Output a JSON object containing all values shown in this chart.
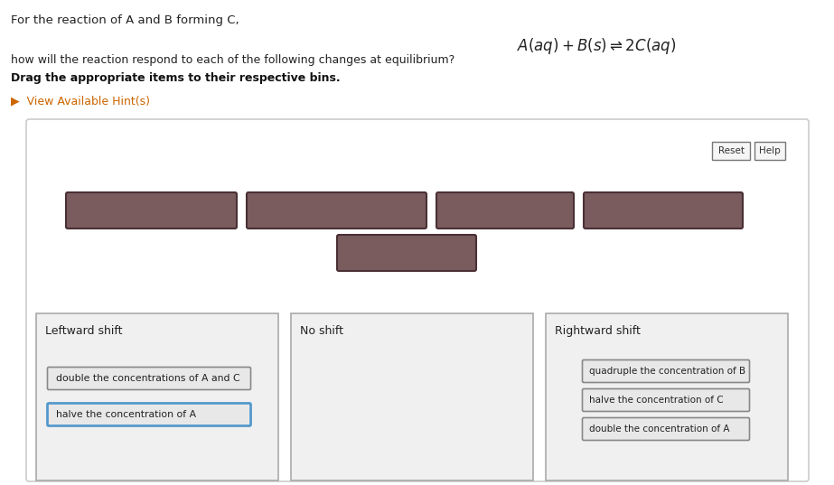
{
  "title_line1": "For the reaction of A and B forming C,",
  "title_line2": "how will the reaction respond to each of the following changes at equilibrium?",
  "title_line3": "Drag the appropriate items to their respective bins.",
  "equation": "$A(aq) + B(s) \\rightleftharpoons 2C(aq)$",
  "hint_text": "▶  View Available Hint(s)",
  "hint_color": "#cc6600",
  "bg_color": "#ffffff",
  "panel_bg": "#ffffff",
  "panel_border": "#cccccc",
  "draggable_color": "#7a5c5e",
  "draggable_border": "#4a3035",
  "bin_labels": [
    "Leftward shift",
    "No shift",
    "Rightward shift"
  ],
  "leftward_items": [
    "double the concentrations of A and C",
    "halve the concentration of A"
  ],
  "rightward_items": [
    "quadruple the concentration of B",
    "halve the concentration of C",
    "double the concentration of A"
  ],
  "button_reset": "Reset",
  "button_help": "Help",
  "item_box_face": "#e8e8e8",
  "item_box_border": "#888888",
  "halve_A_border_color": "#5599cc",
  "bin_face": "#f0f0f0",
  "bin_border": "#aaaaaa",
  "text_color": "#222222",
  "bold_text_color": "#111111"
}
